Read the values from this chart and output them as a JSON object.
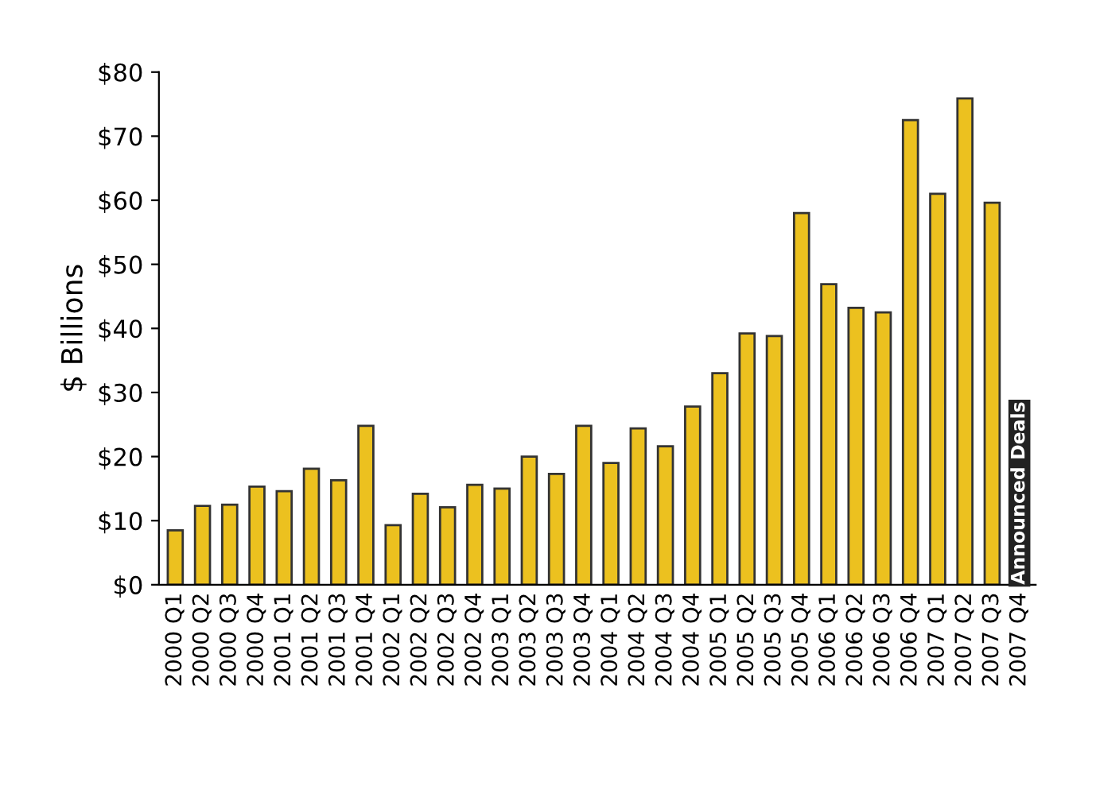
{
  "chart_data": {
    "type": "bar",
    "ylabel": "$ Billions",
    "categories": [
      "2000 Q1",
      "2000 Q2",
      "2000 Q3",
      "2000 Q4",
      "2001 Q1",
      "2001 Q2",
      "2001 Q3",
      "2001 Q4",
      "2002 Q1",
      "2002 Q2",
      "2002 Q3",
      "2002 Q4",
      "2003 Q1",
      "2003 Q2",
      "2003 Q3",
      "2003 Q4",
      "2004 Q1",
      "2004 Q2",
      "2004 Q3",
      "2004 Q4",
      "2005 Q1",
      "2005 Q2",
      "2005 Q3",
      "2005 Q4",
      "2006 Q1",
      "2006 Q2",
      "2006 Q3",
      "2006 Q4",
      "2007 Q1",
      "2007 Q2",
      "2007 Q3",
      "2007 Q4"
    ],
    "values": [
      8.5,
      12.3,
      12.5,
      15.3,
      14.6,
      18.1,
      16.3,
      24.8,
      9.3,
      14.2,
      12.1,
      15.6,
      15.0,
      20.0,
      17.3,
      24.8,
      19.0,
      24.4,
      21.6,
      27.8,
      33.0,
      39.2,
      38.8,
      58.0,
      46.9,
      43.2,
      42.5,
      72.5,
      61.0,
      75.9,
      59.6,
      null
    ],
    "color": "#ecc11f",
    "ylim": [
      0,
      80
    ],
    "yticks": [
      {
        "value": 0,
        "label": "$0"
      },
      {
        "value": 10,
        "label": "$10"
      },
      {
        "value": 20,
        "label": "$20"
      },
      {
        "value": 30,
        "label": "$30"
      },
      {
        "value": 40,
        "label": "$40"
      },
      {
        "value": 50,
        "label": "$50"
      },
      {
        "value": 60,
        "label": "$60"
      },
      {
        "value": 70,
        "label": "$70"
      },
      {
        "value": 80,
        "label": "$80"
      }
    ],
    "grid": false,
    "annotations": [
      "Announced Deals"
    ]
  }
}
